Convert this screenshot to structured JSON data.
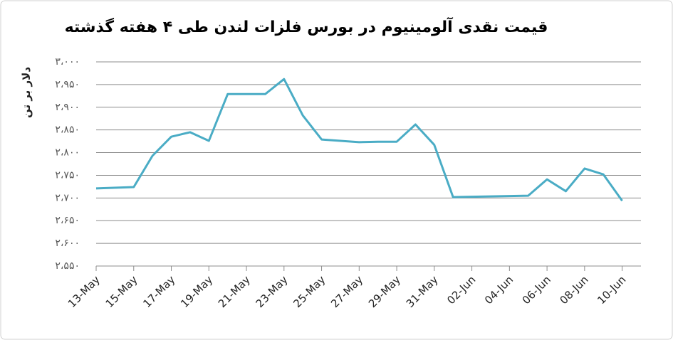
{
  "chart_data": {
    "type": "line",
    "title": "قیمت نقدی آلومینیوم در بورس فلزات لندن طی ۴ هفته گذشته",
    "y_label": "دلار بر تن",
    "x": [
      "13-May",
      "15-May",
      "16-May",
      "17-May",
      "18-May",
      "19-May",
      "20-May",
      "22-May",
      "23-May",
      "24-May",
      "25-May",
      "27-May",
      "28-May",
      "29-May",
      "30-May",
      "31-May",
      "01-Jun",
      "05-Jun",
      "06-Jun",
      "07-Jun",
      "08-Jun",
      "09-Jun",
      "10-Jun"
    ],
    "series": [
      {
        "name": "قیمت نقدی آلومینیوم",
        "color": "#4aacc5",
        "values": [
          2721,
          2724,
          2793,
          2835,
          2845,
          2826,
          2929,
          2929,
          2962,
          2882,
          2829,
          2823,
          2824,
          2824,
          2862,
          2817,
          2702,
          2705,
          2741,
          2715,
          2765,
          2752,
          2694
        ]
      }
    ],
    "xticks": [
      "13-May",
      "15-May",
      "17-May",
      "19-May",
      "21-May",
      "23-May",
      "25-May",
      "27-May",
      "29-May",
      "31-May",
      "02-Jun",
      "04-Jun",
      "06-Jun",
      "08-Jun",
      "10-Jun"
    ],
    "ylim": [
      2550,
      3000
    ],
    "yticks": [
      {
        "value": 2550,
        "label": "۲،۵۵۰"
      },
      {
        "value": 2600,
        "label": "۲،۶۰۰"
      },
      {
        "value": 2650,
        "label": "۲،۶۵۰"
      },
      {
        "value": 2700,
        "label": "۲،۷۰۰"
      },
      {
        "value": 2750,
        "label": "۲،۷۵۰"
      },
      {
        "value": 2800,
        "label": "۲،۸۰۰"
      },
      {
        "value": 2850,
        "label": "۲،۸۵۰"
      },
      {
        "value": 2900,
        "label": "۲،۹۰۰"
      },
      {
        "value": 2950,
        "label": "۲،۹۵۰"
      },
      {
        "value": 3000,
        "label": "۳،۰۰۰"
      }
    ],
    "grid": true
  }
}
